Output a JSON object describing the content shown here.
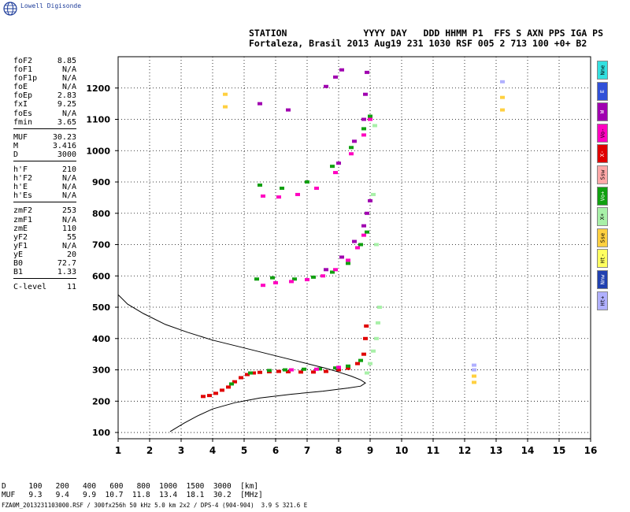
{
  "app": {
    "logo_text": "Lowell Digisonde",
    "logo_icon": "globe-icon"
  },
  "header": {
    "line1": "STATION              YYYY DAY   DDD HHMM P1  FFS S AXN PPS IGA PS",
    "line2": "Fortaleza, Brasil 2013 Aug19 231 1030 RSF 005 2 713 100 +0+ B2"
  },
  "params": [
    {
      "label": "foF2",
      "value": "8.85"
    },
    {
      "label": "foF1",
      "value": "N/A"
    },
    {
      "label": "foF1p",
      "value": "N/A"
    },
    {
      "label": "foE",
      "value": "N/A"
    },
    {
      "label": "foEp",
      "value": "2.83"
    },
    {
      "label": "fxI",
      "value": "9.25"
    },
    {
      "label": "foEs",
      "value": "N/A"
    },
    {
      "label": "fmin",
      "value": "3.65"
    },
    {
      "sep": true
    },
    {
      "label": "MUF",
      "value": "30.23"
    },
    {
      "label": "M",
      "value": "3.416"
    },
    {
      "label": "D",
      "value": "3000"
    },
    {
      "sep": true
    },
    {
      "label": "h'F",
      "value": "210"
    },
    {
      "label": "h'F2",
      "value": "N/A"
    },
    {
      "label": "h'E",
      "value": "N/A"
    },
    {
      "label": "h'Es",
      "value": "N/A"
    },
    {
      "sep": true
    },
    {
      "label": "zmF2",
      "value": "253"
    },
    {
      "label": "zmF1",
      "value": "N/A"
    },
    {
      "label": "zmE",
      "value": "110"
    },
    {
      "label": "yF2",
      "value": "55"
    },
    {
      "label": "yF1",
      "value": "N/A"
    },
    {
      "label": "yE",
      "value": "20"
    },
    {
      "label": "B0",
      "value": "72.7"
    },
    {
      "label": "B1",
      "value": "1.33"
    },
    {
      "sep": true
    },
    {
      "label": "C-level",
      "value": "11"
    }
  ],
  "legend": [
    {
      "label": "Nne",
      "color": "#33e0e0"
    },
    {
      "label": "E",
      "color": "#3050d8"
    },
    {
      "label": "W",
      "color": "#a000b0"
    },
    {
      "label": "Vo-",
      "color": "#ff00c0"
    },
    {
      "label": "X-",
      "color": "#e00000"
    },
    {
      "label": "Ssw",
      "color": "#ffa8a8"
    },
    {
      "label": "Vo+",
      "color": "#10a010"
    },
    {
      "label": "X+",
      "color": "#a8f0a8"
    },
    {
      "label": "Sse",
      "color": "#ffd040"
    },
    {
      "label": "Ht-",
      "color": "#ffff60"
    },
    {
      "label": "Nnw",
      "color": "#2040b0"
    },
    {
      "label": "Ht+",
      "color": "#b0b0ff"
    }
  ],
  "muf_table": {
    "row1": "D     100   200   400   600   800  1000  1500  3000  [km]",
    "row2": "MUF   9.3   9.4   9.9  10.7  11.8  13.4  18.1  30.2  [MHz]"
  },
  "footer": "FZA0M_2013231103000.RSF / 300fx256h 50 kHz 5.0 km 2x2 / DPS-4 (904-904)  3.9 S 321.6 E",
  "chart_data": {
    "type": "scatter",
    "xlim": [
      1,
      16
    ],
    "ylim": [
      80,
      1300
    ],
    "x_ticks": [
      1,
      2,
      3,
      4,
      5,
      6,
      7,
      8,
      9,
      10,
      11,
      12,
      13,
      14,
      15,
      16
    ],
    "y_ticks": [
      100,
      200,
      300,
      400,
      500,
      600,
      700,
      800,
      900,
      1000,
      1100,
      1200
    ],
    "grid": true,
    "series": [
      {
        "color": "#e00000",
        "points": [
          [
            3.7,
            215
          ],
          [
            3.9,
            218
          ],
          [
            4.1,
            225
          ],
          [
            4.3,
            235
          ],
          [
            4.5,
            245
          ],
          [
            4.7,
            262
          ],
          [
            4.9,
            275
          ],
          [
            5.1,
            285
          ],
          [
            5.3,
            290
          ],
          [
            5.5,
            292
          ],
          [
            5.8,
            294
          ],
          [
            6.1,
            295
          ],
          [
            6.4,
            294
          ],
          [
            6.8,
            293
          ],
          [
            7.2,
            293
          ],
          [
            7.6,
            295
          ],
          [
            8.0,
            300
          ],
          [
            8.3,
            305
          ],
          [
            8.6,
            320
          ],
          [
            8.8,
            350
          ],
          [
            8.85,
            400
          ],
          [
            8.88,
            440
          ]
        ]
      },
      {
        "color": "#10a010",
        "points": [
          [
            4.6,
            255
          ],
          [
            5.2,
            290
          ],
          [
            5.8,
            298
          ],
          [
            6.3,
            300
          ],
          [
            6.9,
            302
          ],
          [
            7.4,
            303
          ],
          [
            7.9,
            306
          ],
          [
            8.3,
            312
          ],
          [
            8.7,
            330
          ],
          [
            5.4,
            590
          ],
          [
            5.9,
            594
          ],
          [
            6.6,
            590
          ],
          [
            7.2,
            596
          ],
          [
            7.8,
            612
          ],
          [
            8.3,
            640
          ],
          [
            8.7,
            700
          ],
          [
            8.9,
            740
          ],
          [
            5.5,
            890
          ],
          [
            6.2,
            880
          ],
          [
            7.0,
            900
          ],
          [
            7.8,
            950
          ],
          [
            8.4,
            1010
          ],
          [
            8.8,
            1070
          ],
          [
            9.0,
            1110
          ]
        ]
      },
      {
        "color": "#ff00c0",
        "points": [
          [
            5.6,
            570
          ],
          [
            6.0,
            578
          ],
          [
            6.5,
            582
          ],
          [
            7.0,
            588
          ],
          [
            7.5,
            600
          ],
          [
            7.9,
            620
          ],
          [
            8.3,
            650
          ],
          [
            8.6,
            690
          ],
          [
            8.8,
            730
          ],
          [
            5.6,
            855
          ],
          [
            6.1,
            852
          ],
          [
            6.7,
            860
          ],
          [
            7.3,
            880
          ],
          [
            7.9,
            930
          ],
          [
            8.4,
            990
          ],
          [
            8.8,
            1050
          ],
          [
            9.0,
            1100
          ],
          [
            6.5,
            300
          ],
          [
            7.3,
            302
          ],
          [
            8.0,
            308
          ]
        ]
      },
      {
        "color": "#a000b0",
        "points": [
          [
            7.6,
            620
          ],
          [
            8.1,
            660
          ],
          [
            8.5,
            710
          ],
          [
            8.8,
            760
          ],
          [
            8.9,
            800
          ],
          [
            9.0,
            840
          ],
          [
            8.0,
            960
          ],
          [
            8.5,
            1030
          ],
          [
            8.8,
            1100
          ],
          [
            8.85,
            1180
          ],
          [
            8.9,
            1250
          ],
          [
            7.6,
            1205
          ],
          [
            7.9,
            1235
          ],
          [
            8.1,
            1258
          ],
          [
            5.5,
            1150
          ],
          [
            6.4,
            1130
          ]
        ]
      },
      {
        "color": "#a8f0a8",
        "points": [
          [
            8.9,
            290
          ],
          [
            9.0,
            320
          ],
          [
            9.1,
            360
          ],
          [
            9.2,
            400
          ],
          [
            9.25,
            450
          ],
          [
            9.3,
            500
          ],
          [
            9.2,
            700
          ],
          [
            9.1,
            860
          ],
          [
            9.15,
            1080
          ]
        ]
      },
      {
        "color": "#ffd040",
        "points": [
          [
            4.4,
            1180
          ],
          [
            4.4,
            1140
          ],
          [
            12.3,
            260
          ],
          [
            12.3,
            280
          ],
          [
            13.2,
            1130
          ],
          [
            13.2,
            1170
          ]
        ]
      },
      {
        "color": "#b0b0ff",
        "points": [
          [
            12.3,
            300
          ],
          [
            12.3,
            315
          ],
          [
            13.2,
            1220
          ]
        ]
      }
    ],
    "profile": [
      [
        1.0,
        540
      ],
      [
        1.3,
        510
      ],
      [
        1.8,
        480
      ],
      [
        2.5,
        445
      ],
      [
        3.2,
        420
      ],
      [
        4.0,
        395
      ],
      [
        5.0,
        370
      ],
      [
        6.0,
        345
      ],
      [
        7.0,
        320
      ],
      [
        7.6,
        305
      ],
      [
        8.0,
        293
      ],
      [
        8.4,
        280
      ],
      [
        8.7,
        268
      ],
      [
        8.85,
        258
      ],
      [
        8.7,
        248
      ],
      [
        8.3,
        242
      ],
      [
        7.5,
        232
      ],
      [
        6.5,
        222
      ],
      [
        5.5,
        210
      ],
      [
        4.7,
        195
      ],
      [
        4.0,
        175
      ],
      [
        3.5,
        152
      ],
      [
        3.1,
        130
      ],
      [
        2.85,
        115
      ],
      [
        2.65,
        103
      ]
    ]
  }
}
